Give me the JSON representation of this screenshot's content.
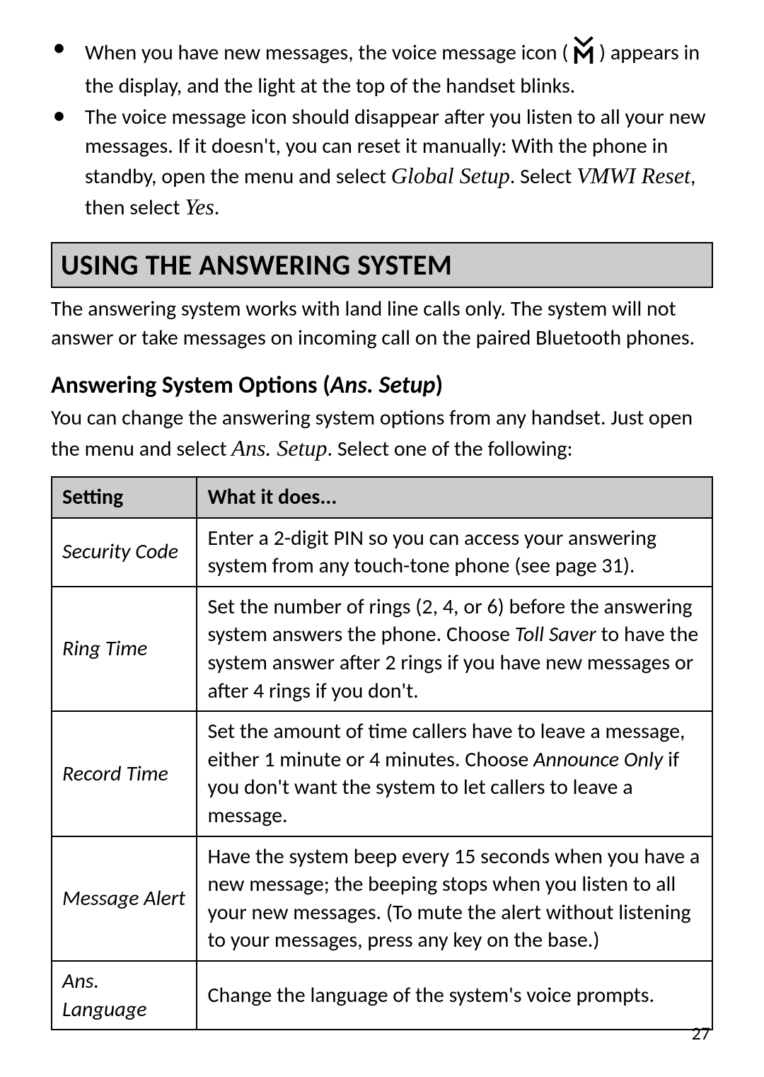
{
  "bullets": [
    {
      "pre": "When you have new messages, the voice message icon  ( ",
      "post": " )  appears in the display, and the light at the top of the handset blinks."
    },
    {
      "pre": "The voice message icon should disappear after you listen to all your new messages. If it doesn't, you can reset it manually: With the phone in standby, open the menu and select ",
      "em1": "Global Setup",
      "mid1": ". Select ",
      "em2": "VMWI Reset",
      "mid2": ", then select ",
      "em3": "Yes",
      "post": "."
    }
  ],
  "section_heading": "USING THE ANSWERING SYSTEM",
  "intro_paragraph": "The answering system works with land line calls only. The system will not answer or take messages on incoming call on the paired Bluetooth phones.",
  "subheading_plain": "Answering System Options (",
  "subheading_em": "Ans. Setup",
  "subheading_close": ")",
  "subintro_pre": "You can change the answering system options from any handset. Just open the menu and select ",
  "subintro_em": "Ans. Setup",
  "subintro_post": ". Select one of the following:",
  "table": {
    "headers": [
      "Setting",
      "What it does..."
    ],
    "rows": [
      {
        "setting": "Security Code",
        "desc_parts": [
          {
            "t": "Enter a 2-digit PIN so you can access your answering system from any touch-tone phone (see page 31)."
          }
        ]
      },
      {
        "setting": "Ring Time",
        "desc_parts": [
          {
            "t": "Set the number of rings (2, 4, or 6) before the answering system answers the phone. Choose "
          },
          {
            "t": "Toll Saver",
            "em": true
          },
          {
            "t": " to have the system answer after 2 rings if you have new messages or after 4 rings if you don't."
          }
        ]
      },
      {
        "setting": "Record Time",
        "desc_parts": [
          {
            "t": "Set the amount of time callers have to leave a message, either 1 minute or 4 minutes. Choose "
          },
          {
            "t": "Announce Only",
            "em": true
          },
          {
            "t": " if you don't want the system to let callers to leave a message."
          }
        ]
      },
      {
        "setting": "Message Alert",
        "desc_parts": [
          {
            "t": "Have the system beep every 15 seconds when you have a new message; the beeping stops when you listen to all your new messages. (To mute the alert without listening to your messages, press any key on the base.)"
          }
        ]
      },
      {
        "setting": "Ans. Language",
        "desc_parts": [
          {
            "t": "Change the language of the system's voice prompts."
          }
        ]
      }
    ]
  },
  "page_number": "27",
  "colors": {
    "header_bg": "#cccccc",
    "border": "#000000",
    "text": "#000000",
    "page_bg": "#ffffff"
  },
  "icon": {
    "name": "voice-message-icon"
  }
}
